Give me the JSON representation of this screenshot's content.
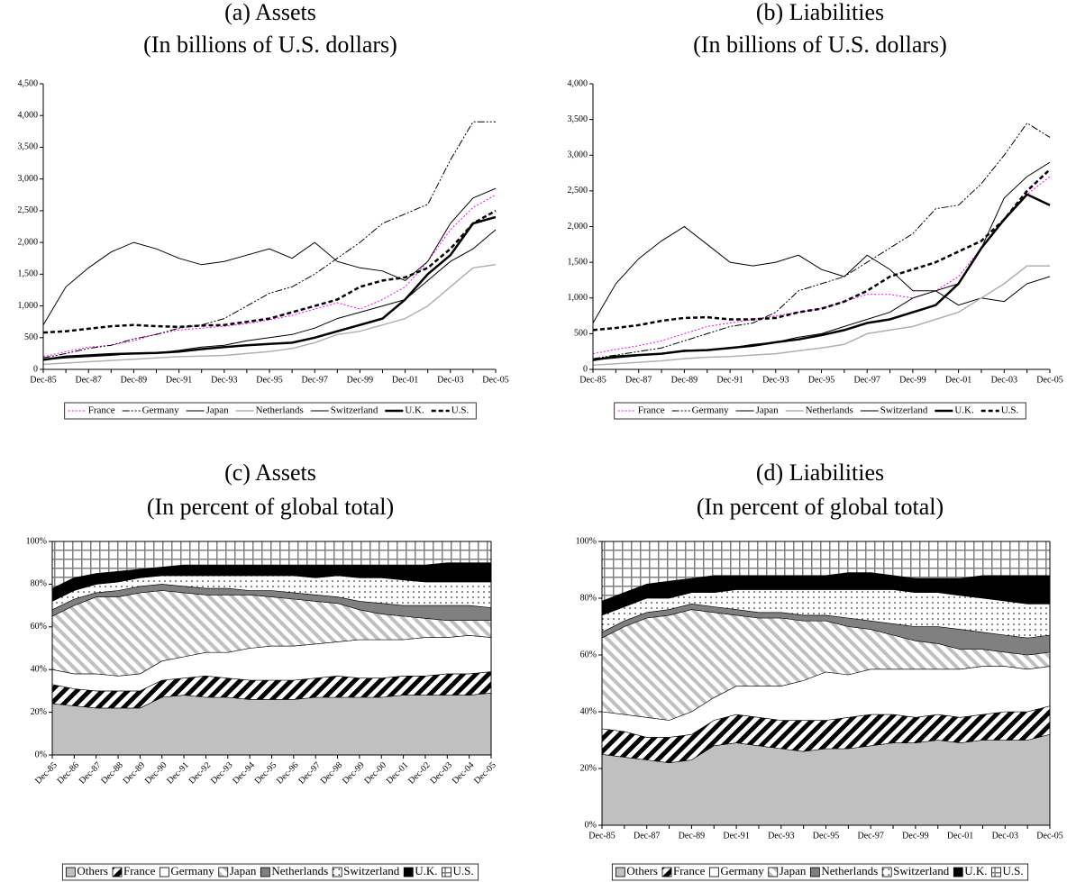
{
  "chart_data": [
    {
      "type": "line",
      "title": "(a) Assets",
      "subtitle": "(In billions of U.S. dollars)",
      "categories": [
        "Dec-85",
        null,
        "Dec-87",
        null,
        "Dec-89",
        null,
        "Dec-91",
        null,
        "Dec-93",
        null,
        "Dec-95",
        null,
        "Dec-97",
        null,
        "Dec-99",
        null,
        "Dec-01",
        null,
        "Dec-03",
        null,
        "Dec-05"
      ],
      "ylim": [
        0,
        4500
      ],
      "yticks": [
        0,
        500,
        {
          "value": 1000,
          "label": "1,000"
        },
        {
          "value": 1500,
          "label": "1,500"
        },
        {
          "value": 2000,
          "label": "2,000"
        },
        {
          "value": 2500,
          "label": "2,500"
        },
        {
          "value": 3000,
          "label": "3,000"
        },
        {
          "value": 3500,
          "label": "3,500"
        },
        {
          "value": 4000,
          "label": "4,000"
        },
        {
          "value": 4500,
          "label": "4,500"
        }
      ],
      "grid": false,
      "legend": "bottom",
      "series": [
        {
          "name": "France",
          "color": "#ff00ff",
          "values": [
            200,
            280,
            350,
            380,
            450,
            560,
            620,
            650,
            680,
            720,
            780,
            850,
            950,
            1050,
            950,
            1100,
            1300,
            1700,
            2200,
            2550,
            2750
          ]
        },
        {
          "name": "Germany",
          "color": "#000000",
          "values": [
            180,
            250,
            330,
            380,
            480,
            550,
            650,
            700,
            800,
            1000,
            1200,
            1300,
            1500,
            1750,
            2000,
            2300,
            2450,
            2600,
            3300,
            3900,
            3900
          ]
        },
        {
          "name": "Japan",
          "color": "#000000",
          "values": [
            700,
            1300,
            1600,
            1850,
            2000,
            1900,
            1750,
            1650,
            1700,
            1800,
            1900,
            1750,
            2000,
            1700,
            1600,
            1550,
            1400,
            1700,
            2300,
            2700,
            2850
          ]
        },
        {
          "name": "Netherlands",
          "color": "#b0b0b0",
          "values": [
            80,
            100,
            120,
            140,
            160,
            180,
            200,
            210,
            220,
            250,
            280,
            330,
            420,
            550,
            600,
            700,
            800,
            1000,
            1300,
            1600,
            1650
          ]
        },
        {
          "name": "Switzerland",
          "color": "#000000",
          "values": [
            150,
            180,
            200,
            220,
            250,
            260,
            300,
            350,
            380,
            450,
            500,
            550,
            650,
            800,
            900,
            1000,
            1100,
            1400,
            1700,
            1900,
            2200
          ]
        },
        {
          "name": "U.K.",
          "color": "#000000",
          "values": [
            150,
            200,
            220,
            240,
            250,
            260,
            280,
            320,
            350,
            380,
            400,
            420,
            500,
            600,
            700,
            800,
            1100,
            1500,
            1800,
            2300,
            2400
          ]
        },
        {
          "name": "U.S.",
          "color": "#000000",
          "values": [
            580,
            600,
            640,
            680,
            700,
            680,
            670,
            690,
            700,
            750,
            800,
            900,
            1000,
            1100,
            1300,
            1400,
            1450,
            1600,
            1900,
            2300,
            2500
          ]
        }
      ]
    },
    {
      "type": "line",
      "title": "(b) Liabilities",
      "subtitle": "(In billions of U.S. dollars)",
      "categories": [
        "Dec-85",
        null,
        "Dec-87",
        null,
        "Dec-89",
        null,
        "Dec-91",
        null,
        "Dec-93",
        null,
        "Dec-95",
        null,
        "Dec-97",
        null,
        "Dec-99",
        null,
        "Dec-01",
        null,
        "Dec-03",
        null,
        "Dec-05"
      ],
      "ylim": [
        0,
        4000
      ],
      "yticks": [
        0,
        500,
        {
          "value": 1000,
          "label": "1,000"
        },
        {
          "value": 1500,
          "label": "1,500"
        },
        {
          "value": 2000,
          "label": "2,000"
        },
        {
          "value": 2500,
          "label": "2,500"
        },
        {
          "value": 3000,
          "label": "3,000"
        },
        {
          "value": 3500,
          "label": "3,500"
        },
        {
          "value": 4000,
          "label": "4,000"
        }
      ],
      "grid": false,
      "legend": "bottom",
      "series": [
        {
          "name": "France",
          "color": "#ff00ff",
          "values": [
            220,
            280,
            330,
            400,
            500,
            600,
            650,
            700,
            750,
            800,
            850,
            950,
            1050,
            1050,
            1000,
            1100,
            1300,
            1700,
            2100,
            2450,
            2700
          ]
        },
        {
          "name": "Germany",
          "color": "#000000",
          "values": [
            150,
            200,
            250,
            300,
            400,
            500,
            600,
            650,
            800,
            1100,
            1200,
            1300,
            1500,
            1700,
            1900,
            2250,
            2300,
            2600,
            3000,
            3450,
            3250
          ]
        },
        {
          "name": "Japan",
          "color": "#000000",
          "values": [
            650,
            1200,
            1550,
            1800,
            2000,
            1750,
            1500,
            1450,
            1500,
            1600,
            1400,
            1300,
            1600,
            1400,
            1100,
            1100,
            900,
            1000,
            950,
            1200,
            1300
          ]
        },
        {
          "name": "Netherlands",
          "color": "#b0b0b0",
          "values": [
            60,
            80,
            100,
            120,
            150,
            170,
            180,
            200,
            220,
            260,
            300,
            350,
            500,
            550,
            600,
            700,
            800,
            1000,
            1200,
            1450,
            1450
          ]
        },
        {
          "name": "Switzerland",
          "color": "#000000",
          "values": [
            130,
            160,
            190,
            220,
            250,
            270,
            300,
            350,
            380,
            450,
            500,
            600,
            700,
            800,
            1000,
            1100,
            1200,
            1700,
            2400,
            2700,
            2900
          ]
        },
        {
          "name": "U.K.",
          "color": "#000000",
          "values": [
            130,
            180,
            200,
            220,
            260,
            270,
            300,
            330,
            380,
            420,
            480,
            550,
            650,
            700,
            800,
            900,
            1200,
            1700,
            2100,
            2450,
            2300
          ]
        },
        {
          "name": "U.S.",
          "color": "#000000",
          "values": [
            550,
            580,
            620,
            680,
            720,
            730,
            700,
            700,
            720,
            800,
            850,
            950,
            1100,
            1300,
            1400,
            1500,
            1650,
            1800,
            2100,
            2500,
            2800
          ]
        }
      ]
    },
    {
      "type": "stacked_area",
      "title": "(c) Assets",
      "subtitle": "(In percent of global total)",
      "categories": [
        "Dec-85",
        "Dec-86",
        "Dec-87",
        "Dec-88",
        "Dec-89",
        "Dec-90",
        "Dec-91",
        "Dec-92",
        "Dec-93",
        "Dec-94",
        "Dec-95",
        "Dec-96",
        "Dec-97",
        "Dec-98",
        "Dec-99",
        "Dec-00",
        "Dec-01",
        "Dec-02",
        "Dec-03",
        "Dec-04",
        "Dec-05"
      ],
      "ylim": [
        0,
        100
      ],
      "yticks": [
        {
          "value": 0,
          "label": "0%"
        },
        {
          "value": 20,
          "label": "20%"
        },
        {
          "value": 40,
          "label": "40%"
        },
        {
          "value": 60,
          "label": "60%"
        },
        {
          "value": 80,
          "label": "80%"
        },
        {
          "value": 100,
          "label": "100%"
        }
      ],
      "grid": false,
      "legend": "bottom",
      "series": [
        {
          "name": "Others",
          "color": "#c0c0c0",
          "values": [
            24,
            23,
            22,
            22,
            22,
            27,
            28,
            27,
            27,
            26,
            26,
            26,
            27,
            27,
            27,
            27,
            28,
            28,
            28,
            28,
            29
          ]
        },
        {
          "name": "France",
          "color": "#000000",
          "values": [
            9,
            8,
            8,
            8,
            8,
            8,
            8,
            10,
            9,
            9,
            9,
            9,
            9,
            10,
            9,
            9,
            9,
            9,
            10,
            10,
            10
          ]
        },
        {
          "name": "Germany",
          "color": "#ffffff",
          "values": [
            7,
            7,
            8,
            7,
            8,
            9,
            10,
            11,
            12,
            15,
            16,
            16,
            16,
            16,
            18,
            18,
            17,
            18,
            17,
            18,
            16
          ]
        },
        {
          "name": "Japan",
          "color": "#c0c0c0",
          "values": [
            25,
            32,
            36,
            37,
            38,
            33,
            30,
            27,
            27,
            25,
            23,
            22,
            20,
            18,
            14,
            12,
            11,
            9,
            8,
            7,
            8
          ]
        },
        {
          "name": "Netherlands",
          "color": "#808080",
          "values": [
            3,
            3,
            2,
            3,
            3,
            3,
            3,
            3,
            3,
            2,
            3,
            3,
            3,
            3,
            4,
            5,
            5,
            6,
            7,
            7,
            6
          ]
        },
        {
          "name": "Switzerland",
          "color": "#000000",
          "values": [
            4,
            4,
            4,
            4,
            4,
            4,
            5,
            6,
            6,
            7,
            7,
            8,
            8,
            10,
            11,
            12,
            12,
            11,
            11,
            11,
            12
          ]
        },
        {
          "name": "U.K.",
          "color": "#000000",
          "values": [
            6,
            6,
            5,
            5,
            4,
            4,
            5,
            5,
            5,
            5,
            5,
            5,
            6,
            5,
            6,
            6,
            7,
            8,
            9,
            9,
            9
          ]
        },
        {
          "name": "U.S.",
          "color": "#808080",
          "values": [
            22,
            17,
            15,
            14,
            13,
            12,
            11,
            11,
            11,
            11,
            11,
            11,
            11,
            11,
            11,
            11,
            11,
            11,
            10,
            10,
            10
          ]
        }
      ]
    },
    {
      "type": "stacked_area",
      "title": "(d) Liabilities",
      "subtitle": "(In percent of global total)",
      "categories": [
        "Dec-85",
        null,
        "Dec-87",
        null,
        "Dec-89",
        null,
        "Dec-91",
        null,
        "Dec-93",
        null,
        "Dec-95",
        null,
        "Dec-97",
        null,
        "Dec-99",
        null,
        "Dec-01",
        null,
        "Dec-03",
        null,
        "Dec-05"
      ],
      "ylim": [
        0,
        100
      ],
      "yticks": [
        {
          "value": 0,
          "label": "0%"
        },
        {
          "value": 20,
          "label": "20%"
        },
        {
          "value": 40,
          "label": "40%"
        },
        {
          "value": 60,
          "label": "60%"
        },
        {
          "value": 80,
          "label": "80%"
        },
        {
          "value": 100,
          "label": "100%"
        }
      ],
      "grid": false,
      "legend": "bottom",
      "series": [
        {
          "name": "Others",
          "color": "#c0c0c0",
          "values": [
            25,
            24,
            23,
            22,
            23,
            28,
            29,
            28,
            27,
            26,
            27,
            27,
            28,
            29,
            29,
            30,
            29,
            30,
            30,
            30,
            32
          ]
        },
        {
          "name": "France",
          "color": "#000000",
          "values": [
            9,
            9,
            8,
            9,
            9,
            9,
            10,
            10,
            10,
            11,
            10,
            11,
            11,
            10,
            9,
            9,
            9,
            9,
            10,
            10,
            10
          ]
        },
        {
          "name": "Germany",
          "color": "#ffffff",
          "values": [
            6,
            6,
            7,
            6,
            8,
            8,
            10,
            11,
            12,
            14,
            17,
            15,
            16,
            16,
            17,
            16,
            17,
            17,
            16,
            15,
            14
          ]
        },
        {
          "name": "Japan",
          "color": "#c0c0c0",
          "values": [
            26,
            31,
            35,
            37,
            36,
            30,
            25,
            24,
            24,
            21,
            18,
            17,
            14,
            12,
            10,
            9,
            7,
            6,
            5,
            5,
            5
          ]
        },
        {
          "name": "Netherlands",
          "color": "#808080",
          "values": [
            2,
            2,
            2,
            2,
            2,
            2,
            2,
            2,
            2,
            2,
            2,
            3,
            3,
            4,
            5,
            6,
            7,
            6,
            6,
            6,
            6
          ]
        },
        {
          "name": "Switzerland",
          "color": "#000000",
          "values": [
            6,
            5,
            5,
            4,
            4,
            5,
            7,
            8,
            8,
            9,
            9,
            10,
            11,
            12,
            12,
            12,
            12,
            12,
            12,
            12,
            11
          ]
        },
        {
          "name": "U.K.",
          "color": "#000000",
          "values": [
            5,
            5,
            5,
            6,
            5,
            6,
            5,
            5,
            5,
            5,
            5,
            6,
            6,
            5,
            5,
            5,
            6,
            8,
            9,
            10,
            10
          ]
        },
        {
          "name": "U.S.",
          "color": "#808080",
          "values": [
            21,
            18,
            15,
            14,
            13,
            12,
            12,
            12,
            12,
            12,
            12,
            11,
            11,
            12,
            13,
            13,
            13,
            12,
            12,
            12,
            12
          ]
        }
      ]
    }
  ]
}
